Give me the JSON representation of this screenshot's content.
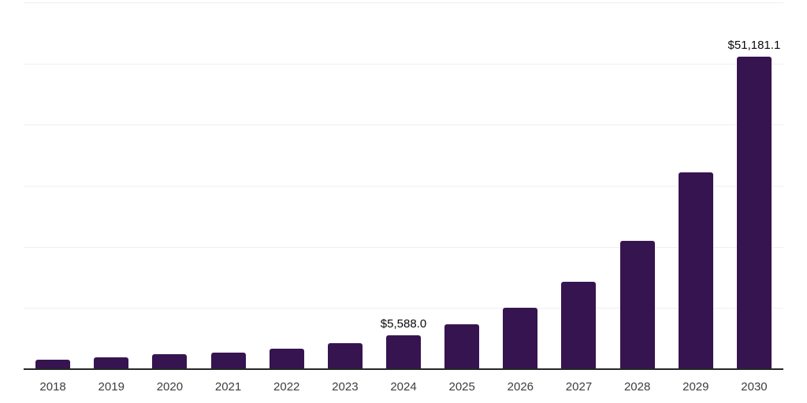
{
  "chart_data": {
    "type": "bar",
    "categories": [
      "2018",
      "2019",
      "2020",
      "2021",
      "2022",
      "2023",
      "2024",
      "2025",
      "2026",
      "2027",
      "2028",
      "2029",
      "2030"
    ],
    "values": [
      1600,
      1900,
      2450,
      2700,
      3400,
      4200,
      5588.0,
      7400,
      10100,
      14300,
      21000,
      32200,
      51181.1
    ],
    "data_labels": [
      "",
      "",
      "",
      "",
      "",
      "",
      "$5,588.0",
      "",
      "",
      "",
      "",
      "",
      "$51,181.1"
    ],
    "title": "",
    "xlabel": "",
    "ylabel": "",
    "ylim": [
      0,
      60000
    ],
    "gridline_values": [
      10000,
      20000,
      30000,
      40000,
      50000,
      60000
    ],
    "grid": "on",
    "legend": "none",
    "colors": {
      "bar": "#361450",
      "axis_line": "#262626",
      "gridline": "#efefef",
      "tick_label": "#3d3d3d",
      "data_label": "#0a0a0a",
      "background": "#ffffff"
    }
  }
}
